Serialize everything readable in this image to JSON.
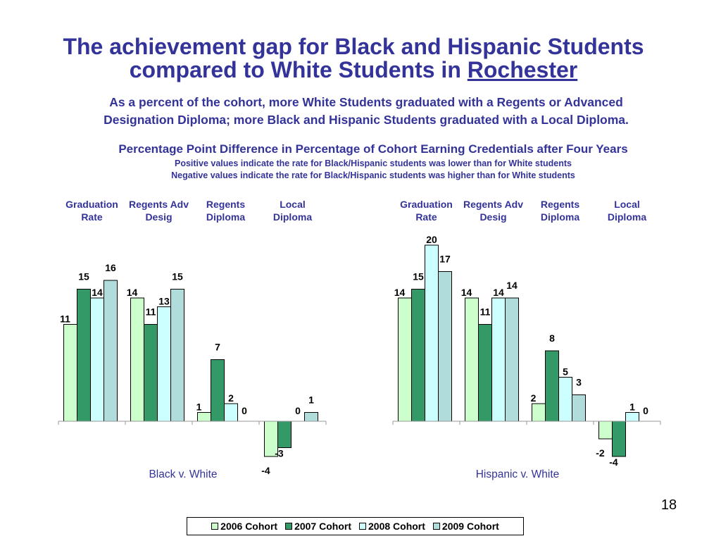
{
  "title": {
    "line1": "The achievement gap for Black and Hispanic Students",
    "line2_prefix": "compared to White Students in ",
    "line2_place": "Rochester"
  },
  "subtitle": {
    "line1": "As a percent of the cohort, more White Students graduated with a Regents or Advanced",
    "line2": "Designation Diploma; more Black and Hispanic Students graduated with a Local Diploma."
  },
  "chart_title": "Percentage Point Difference in Percentage of Cohort Earning Credentials after Four Years",
  "notes": {
    "positive": "Positive values indicate the rate for Black/Hispanic students was lower than for White students",
    "negative": "Negative values indicate the rate for Black/Hispanic students was higher than for White students"
  },
  "page_number": "18",
  "chart_data": {
    "type": "bar",
    "ylim": [
      -4,
      20
    ],
    "categories": [
      [
        "Graduation",
        "Rate"
      ],
      [
        "Regents Adv",
        "Desig"
      ],
      [
        "Regents",
        "Diploma"
      ],
      [
        "Local",
        "Diploma"
      ]
    ],
    "series_names": [
      "2006 Cohort",
      "2007 Cohort",
      "2008 Cohort",
      "2009 Cohort"
    ],
    "series_colors": [
      "#ccffcc",
      "#339966",
      "#ccffff",
      "#b0dcdc"
    ],
    "groups": [
      {
        "label": "Black v. White",
        "values": [
          [
            11,
            15,
            14,
            16
          ],
          [
            14,
            11,
            13,
            15
          ],
          [
            1,
            7,
            2,
            0
          ],
          [
            -4,
            -3,
            0,
            1
          ]
        ]
      },
      {
        "label": "Hispanic v. White",
        "values": [
          [
            14,
            15,
            20,
            17
          ],
          [
            14,
            11,
            14,
            14
          ],
          [
            2,
            8,
            5,
            3
          ],
          [
            -2,
            -4,
            1,
            0
          ]
        ]
      }
    ]
  }
}
